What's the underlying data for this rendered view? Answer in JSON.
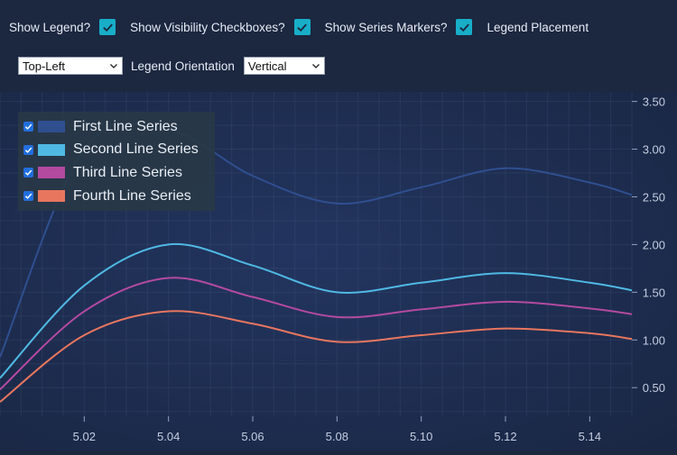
{
  "toolbar": {
    "show_legend_label": "Show Legend?",
    "show_visibility_label": "Show Visibility Checkboxes?",
    "show_markers_label": "Show Series Markers?",
    "legend_placement_label": "Legend Placement",
    "legend_placement_value": "Top-Left",
    "legend_orientation_label": "Legend Orientation",
    "legend_orientation_value": "Vertical",
    "show_legend_checked": true,
    "show_visibility_checked": true,
    "show_markers_checked": true
  },
  "colors": {
    "background": "#1c2740",
    "checkbox": "#18aec8",
    "series": [
      "#2f4f8f",
      "#4fb9e3",
      "#b34aa0",
      "#e8765f"
    ]
  },
  "chart_data": {
    "type": "line",
    "x_ticks": [
      "5.02",
      "5.04",
      "5.06",
      "5.08",
      "5.10",
      "5.12",
      "5.14"
    ],
    "y_ticks": [
      "0.50",
      "1.00",
      "1.50",
      "2.00",
      "2.50",
      "3.00",
      "3.50"
    ],
    "xlim": [
      5.0,
      5.15
    ],
    "ylim": [
      0.2,
      3.6
    ],
    "y_axis_side": "right",
    "legend_placement": "top-left",
    "series": [
      {
        "name": "First Line Series",
        "x": [
          5.0,
          5.02,
          5.04,
          5.06,
          5.08,
          5.1,
          5.12,
          5.14,
          5.15
        ],
        "y": [
          0.82,
          3.0,
          3.2,
          2.72,
          2.43,
          2.6,
          2.8,
          2.65,
          2.52
        ],
        "visible": true
      },
      {
        "name": "Second Line Series",
        "x": [
          5.0,
          5.02,
          5.04,
          5.06,
          5.08,
          5.1,
          5.12,
          5.14,
          5.15
        ],
        "y": [
          0.6,
          1.57,
          2.0,
          1.78,
          1.5,
          1.6,
          1.7,
          1.6,
          1.52
        ],
        "visible": true
      },
      {
        "name": "Third Line Series",
        "x": [
          5.0,
          5.02,
          5.04,
          5.06,
          5.08,
          5.1,
          5.12,
          5.14,
          5.15
        ],
        "y": [
          0.48,
          1.3,
          1.65,
          1.45,
          1.24,
          1.32,
          1.4,
          1.33,
          1.27
        ],
        "visible": true
      },
      {
        "name": "Fourth Line Series",
        "x": [
          5.0,
          5.02,
          5.04,
          5.06,
          5.08,
          5.1,
          5.12,
          5.14,
          5.15
        ],
        "y": [
          0.35,
          1.05,
          1.3,
          1.17,
          0.98,
          1.05,
          1.12,
          1.07,
          1.01
        ],
        "visible": true
      }
    ]
  }
}
